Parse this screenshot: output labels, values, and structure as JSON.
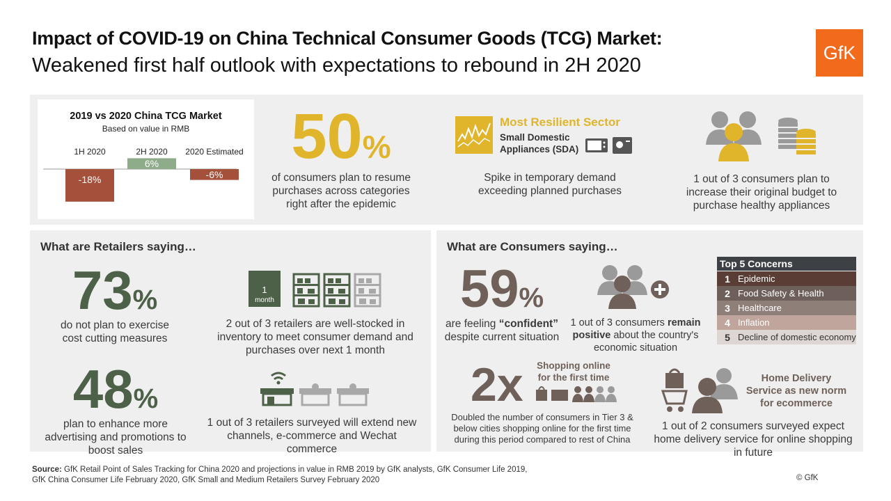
{
  "header": {
    "title_line1": "Impact of COVID-19 on China Technical Consumer Goods (TCG) Market:",
    "title_line2": "Weakened first half outlook with expectations to rebound in 2H 2020",
    "logo": "GfK"
  },
  "chart_data": {
    "type": "bar",
    "title": "2019 vs 2020 China TCG Market",
    "subtitle": "Based on value in RMB",
    "categories": [
      "1H 2020",
      "2H 2020",
      "2020 Estimated"
    ],
    "values": [
      -18,
      6,
      -6
    ],
    "value_labels": [
      "-18%",
      "6%",
      "-6%"
    ],
    "colors": [
      "#a5503a",
      "#8fac8a",
      "#a5503a"
    ],
    "ylim": [
      -20,
      8
    ]
  },
  "top": {
    "stat50": {
      "number": "50",
      "unit": "%",
      "text": "of consumers plan to resume purchases across categories right after the epidemic"
    },
    "resilient": {
      "heading": "Most Resilient Sector",
      "sector": "Small Domestic Appliances (SDA)",
      "text": "Spike in temporary demand exceeding planned purchases"
    },
    "budget": {
      "text": "1 out of 3 consumers plan to increase their original budget to purchase healthy appliances"
    }
  },
  "retailers": {
    "heading": "What are Retailers saying…",
    "stat73": {
      "number": "73",
      "unit": "%",
      "text": "do not plan to exercise cost cutting measures"
    },
    "stocked": {
      "calendar_num": "1",
      "calendar_unit": "month",
      "text": "2 out of 3 retailers are well-stocked in inventory to meet consumer demand and purchases over next 1 month"
    },
    "stat48": {
      "number": "48",
      "unit": "%",
      "text": "plan to enhance more advertising and promotions to boost sales"
    },
    "channels": {
      "text": "1 out of 3 retailers surveyed will extend new channels, e-commerce and Wechat commerce"
    }
  },
  "consumers": {
    "heading": "What are Consumers saying…",
    "stat59": {
      "number": "59",
      "unit": "%",
      "text_pre": "are feeling ",
      "text_bold": "“confident”",
      "text_post": "despite current situation"
    },
    "positive": {
      "text_pre": "1 out of 3 consumers ",
      "text_bold1": "remain",
      "text_bold2": "positive",
      "text_post": " about the country's economic situation"
    },
    "concerns": {
      "title": "Top 5 Concerns",
      "items": [
        {
          "num": "1",
          "label": "Epidemic",
          "color": "#5a3e35"
        },
        {
          "num": "2",
          "label": "Food Safety & Health",
          "color": "#6e5f5a"
        },
        {
          "num": "3",
          "label": "Healthcare",
          "color": "#8f7f79"
        },
        {
          "num": "4",
          "label": "Inflation",
          "color": "#c0a59c"
        },
        {
          "num": "5",
          "label": "Decline of domestic economy",
          "color": "#ddd6d3"
        }
      ]
    },
    "online": {
      "number": "2x",
      "heading": "Shopping online for the first time",
      "text": "Doubled the number of consumers in Tier 3 & below cities shopping online for the first time during this period compared to rest of China"
    },
    "delivery": {
      "heading": "Home Delivery Service as new norm for ecommerce",
      "text": "1 out of 2 consumers surveyed expect home delivery service for online shopping in future"
    }
  },
  "footer": {
    "source_label": "Source:",
    "source_line1": " GfK Retail Point of Sales Tracking for China 2020 and projections in value in RMB 2019 by GfK analysts, GfK Consumer Life 2019,",
    "source_line2": "GfK China Consumer Life February 2020, GfK Small and Medium Retailers Survey February 2020",
    "copyright": "© GfK"
  }
}
